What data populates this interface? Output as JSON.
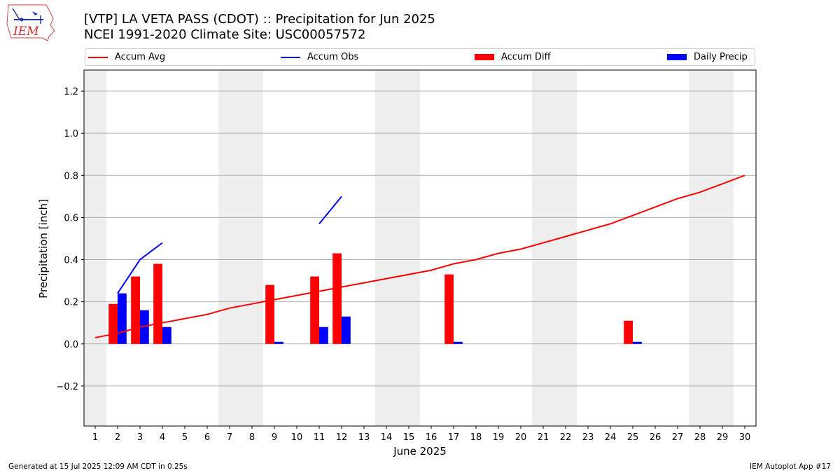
{
  "header": {
    "title_line1": "[VTP] LA VETA PASS (CDOT) :: Precipitation for Jun 2025",
    "title_line2": "NCEI 1991-2020 Climate Site: USC00057572",
    "logo_text": "IEM"
  },
  "legend": [
    {
      "label": "Accum Avg",
      "kind": "line",
      "color": "#ff0000"
    },
    {
      "label": "Accum Obs",
      "kind": "line",
      "color": "#0000ff"
    },
    {
      "label": "Accum Diff",
      "kind": "patch",
      "color": "#ff0000"
    },
    {
      "label": "Daily Precip",
      "kind": "patch",
      "color": "#0000ff"
    }
  ],
  "footer": {
    "left": "Generated at 15 Jul 2025 12:09 AM CDT in 0.25s",
    "right": "IEM Autoplot App #17"
  },
  "chart_data": {
    "type": "bar",
    "title": "[VTP] LA VETA PASS (CDOT) :: Precipitation for Jun 2025",
    "xlabel": "June 2025",
    "ylabel": "Precipitation [inch]",
    "xlim": [
      0.5,
      30.5
    ],
    "ylim": [
      -0.39,
      1.3
    ],
    "yticks": [
      -0.2,
      0.0,
      0.2,
      0.4,
      0.6,
      0.8,
      1.0,
      1.2
    ],
    "ytick_labels": [
      "−0.2",
      "0.0",
      "0.2",
      "0.4",
      "0.6",
      "0.8",
      "1.0",
      "1.2"
    ],
    "x": [
      1,
      2,
      3,
      4,
      5,
      6,
      7,
      8,
      9,
      10,
      11,
      12,
      13,
      14,
      15,
      16,
      17,
      18,
      19,
      20,
      21,
      22,
      23,
      24,
      25,
      26,
      27,
      28,
      29,
      30
    ],
    "x_tick_labels": [
      "1",
      "2",
      "3",
      "4",
      "5",
      "6",
      "7",
      "8",
      "9",
      "10",
      "11",
      "12",
      "13",
      "14",
      "15",
      "16",
      "17",
      "18",
      "19",
      "20",
      "21",
      "22",
      "23",
      "24",
      "25",
      "26",
      "27",
      "28",
      "29",
      "30"
    ],
    "weekend_shading": [
      [
        0.5,
        1.5
      ],
      [
        6.5,
        8.5
      ],
      [
        13.5,
        15.5
      ],
      [
        20.5,
        22.5
      ],
      [
        27.5,
        29.5
      ]
    ],
    "grid": "y",
    "legend_position": "top",
    "series": [
      {
        "name": "Accum Avg",
        "type": "line",
        "color": "#ff0000",
        "values": [
          0.03,
          0.05,
          0.08,
          0.1,
          0.12,
          0.14,
          0.17,
          0.19,
          0.21,
          0.23,
          0.25,
          0.27,
          0.29,
          0.31,
          0.33,
          0.35,
          0.38,
          0.4,
          0.43,
          0.45,
          0.48,
          0.51,
          0.54,
          0.57,
          0.61,
          0.65,
          0.69,
          0.72,
          0.76,
          0.8
        ]
      },
      {
        "name": "Accum Obs",
        "type": "line",
        "color": "#0000ff",
        "values": [
          null,
          0.24,
          0.4,
          0.48,
          null,
          null,
          null,
          null,
          null,
          null,
          0.57,
          0.7,
          null,
          null,
          null,
          null,
          null,
          null,
          null,
          null,
          null,
          null,
          null,
          null,
          null,
          null,
          null,
          null,
          null,
          null
        ]
      },
      {
        "name": "Accum Diff",
        "type": "bar",
        "color": "#ff0000",
        "values": [
          0,
          0.19,
          0.32,
          0.38,
          0,
          0,
          0,
          0,
          0.28,
          0,
          0.32,
          0.43,
          0,
          0,
          0,
          0,
          0.33,
          0,
          0,
          0,
          0,
          0,
          0,
          0,
          0.11,
          0,
          0,
          0,
          0,
          0
        ]
      },
      {
        "name": "Daily Precip",
        "type": "bar",
        "color": "#0000ff",
        "values": [
          0,
          0.24,
          0.16,
          0.08,
          0,
          0,
          0,
          0,
          0.01,
          0,
          0.08,
          0.13,
          0,
          0,
          0,
          0,
          0.01,
          0,
          0,
          0,
          0,
          0,
          0,
          0,
          0.01,
          0,
          0,
          0,
          0,
          0
        ]
      }
    ]
  }
}
